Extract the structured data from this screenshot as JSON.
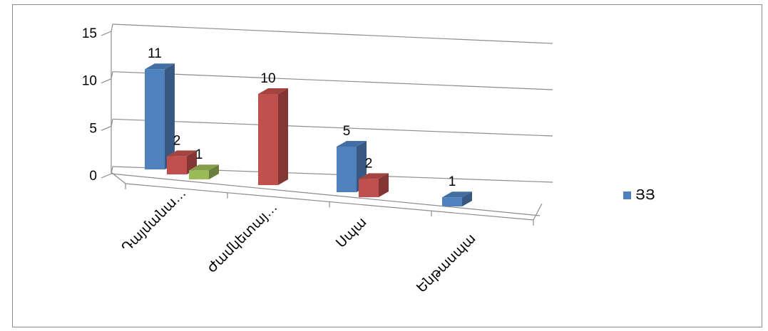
{
  "chart_data": {
    "type": "bar",
    "subtype": "3d-clustered-column",
    "categories": [
      "Դայմանա…",
      "Ժամկետայ…",
      "Սպա",
      "Ենթասպա"
    ],
    "series": [
      {
        "name": "ՅՅ",
        "color": "#4f81bd",
        "values": [
          11,
          null,
          5,
          1
        ]
      },
      {
        "name": "",
        "color": "#c0504d",
        "values": [
          2,
          10,
          2,
          null
        ]
      },
      {
        "name": "",
        "color": "#9bbb59",
        "values": [
          1,
          null,
          null,
          null
        ]
      }
    ],
    "y_ticks": [
      "0",
      "5",
      "10",
      "15"
    ],
    "ylim": [
      0,
      15
    ],
    "grid": true,
    "legend_position": "right"
  },
  "legend": {
    "label": "ՅՅ",
    "color": "#4f81bd"
  }
}
